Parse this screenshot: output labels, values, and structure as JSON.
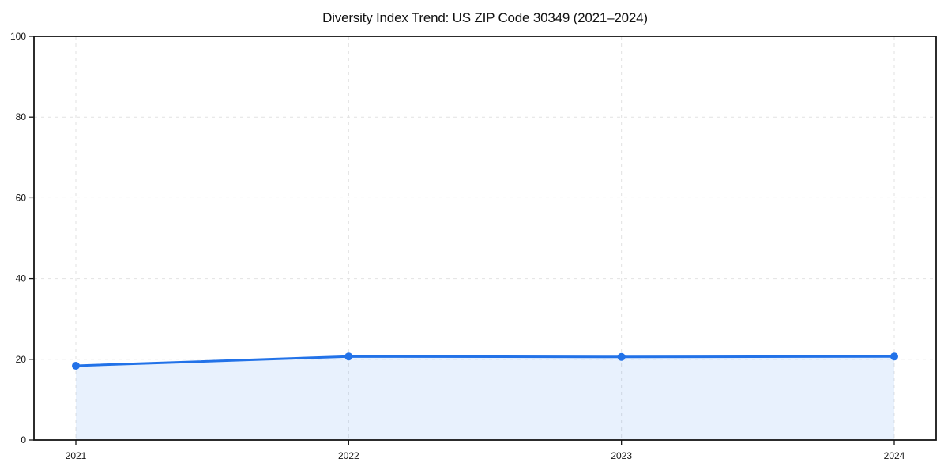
{
  "chart_data": {
    "type": "area",
    "title": "Diversity Index Trend: US ZIP Code 30349 (2021–2024)",
    "categories": [
      "2021",
      "2022",
      "2023",
      "2024"
    ],
    "series": [
      {
        "name": "Diversity Index",
        "values": [
          18.4,
          20.7,
          20.6,
          20.7
        ]
      }
    ],
    "xlabel": "",
    "ylabel": "",
    "ylim": [
      0,
      100
    ],
    "yticks": [
      0,
      20,
      40,
      60,
      80,
      100
    ],
    "grid": "dashed-both-axes",
    "legend": "none",
    "marker": "circle",
    "colors": {
      "line": "#2272e8",
      "marker": "#2272e8",
      "fill": "rgba(34, 114, 232, 0.10)",
      "grid": "#e2e2e2",
      "axis": "#151515",
      "text": "#151515",
      "background": "#ffffff"
    }
  }
}
